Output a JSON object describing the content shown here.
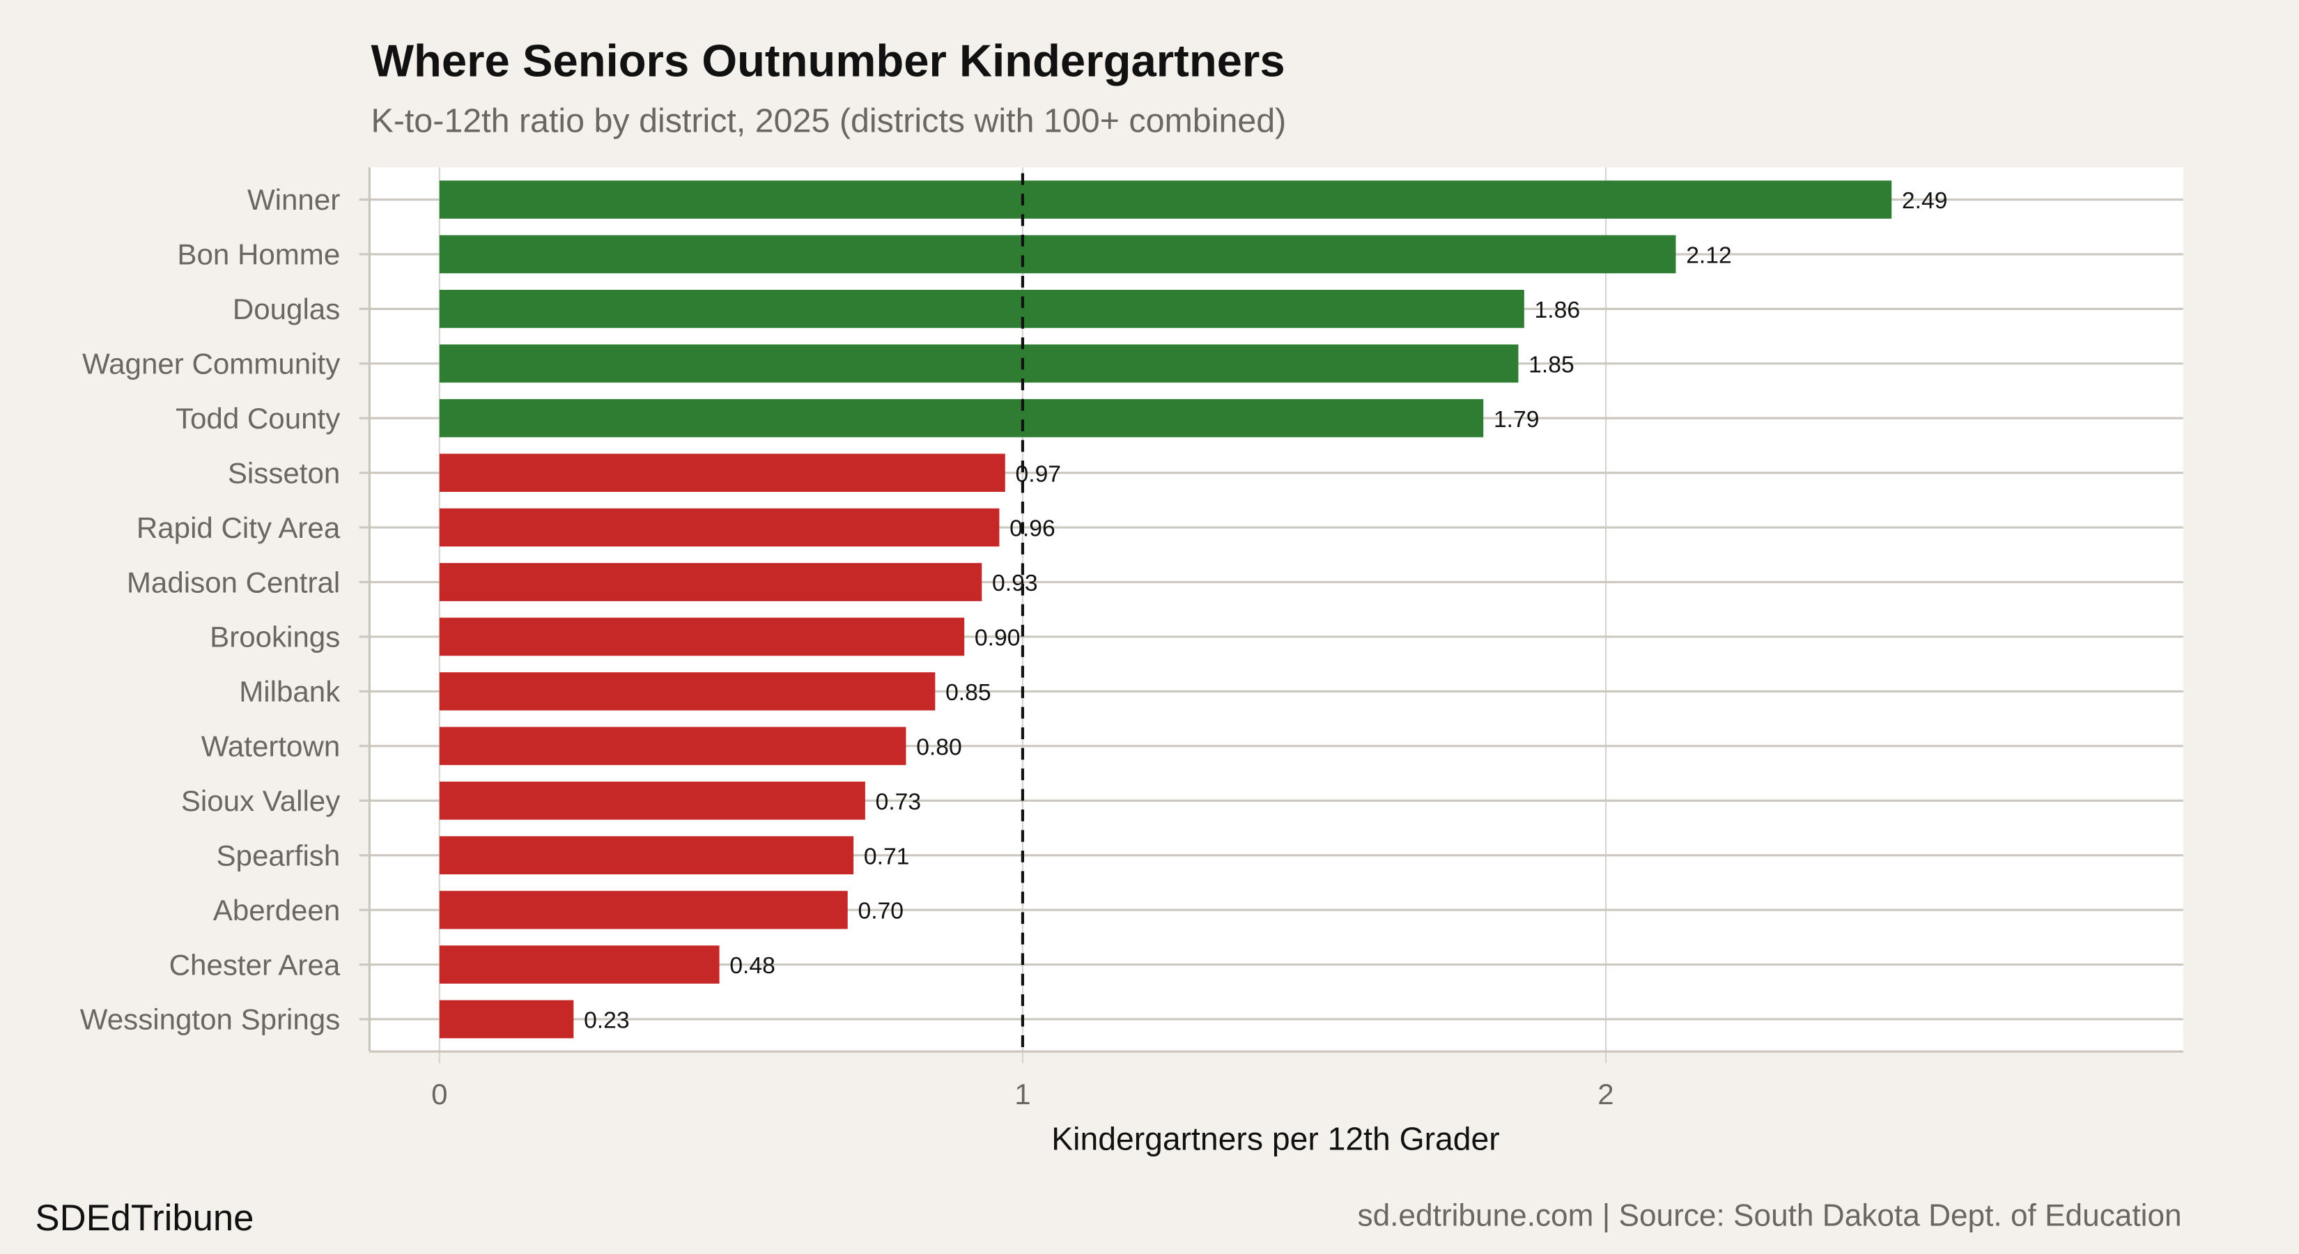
{
  "chart_data": {
    "type": "bar",
    "orientation": "horizontal",
    "title": "Where Seniors Outnumber Kindergartners",
    "subtitle": "K-to-12th ratio by district, 2025 (districts with 100+ combined)",
    "xlabel": "Kindergartners per 12th Grader",
    "ylabel": "",
    "xlim": [
      -0.12,
      2.99
    ],
    "xticks": [
      0,
      1,
      2
    ],
    "xtick_labels": [
      "0",
      "1",
      "2"
    ],
    "reference_line": {
      "x": 1,
      "style": "dashed",
      "color": "#111111"
    },
    "grid": true,
    "legend": "none",
    "colors": {
      "above_one": "#2e7d32",
      "below_one": "#c62828",
      "background": "#f4f1ec",
      "panel": "#ffffff"
    },
    "categories": [
      "Winner",
      "Bon Homme",
      "Douglas",
      "Wagner Community",
      "Todd County",
      "Sisseton",
      "Rapid City Area",
      "Madison Central",
      "Brookings",
      "Milbank",
      "Watertown",
      "Sioux Valley",
      "Spearfish",
      "Aberdeen",
      "Chester Area",
      "Wessington Springs"
    ],
    "values": [
      2.49,
      2.12,
      1.86,
      1.85,
      1.79,
      0.97,
      0.96,
      0.93,
      0.9,
      0.85,
      0.8,
      0.73,
      0.71,
      0.7,
      0.48,
      0.23
    ],
    "data_labels": [
      "2.49",
      "2.12",
      "1.86",
      "1.85",
      "1.79",
      "0.97",
      "0.96",
      "0.93",
      "0.90",
      "0.85",
      "0.80",
      "0.73",
      "0.71",
      "0.70",
      "0.48",
      "0.23"
    ]
  },
  "footer": {
    "brand": "SDEdTribune",
    "source": "sd.edtribune.com | Source: South Dakota Dept. of Education"
  }
}
